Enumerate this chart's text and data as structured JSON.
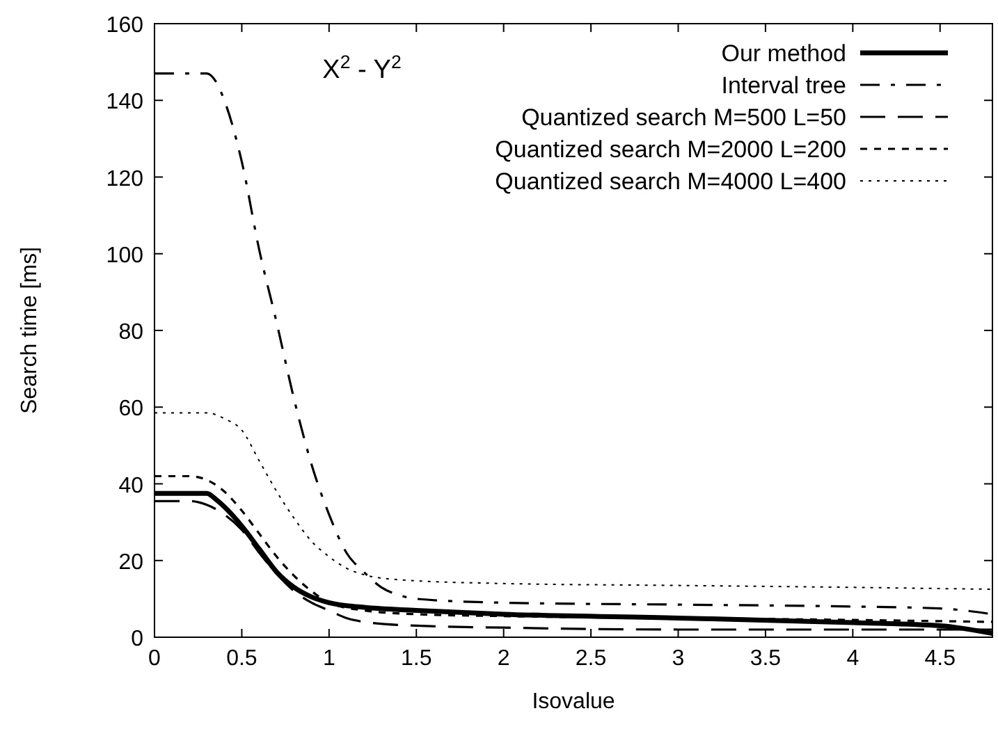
{
  "chart_data": {
    "type": "line",
    "title": "X$^{2}$ - Y$^{2}$",
    "xlabel": "Isovalue",
    "ylabel": "Search time [ms]",
    "xlim": [
      0,
      4.8
    ],
    "xticks": [
      0,
      0.5,
      1,
      1.5,
      2,
      2.5,
      3,
      3.5,
      4,
      4.5
    ],
    "ylim": [
      0,
      160
    ],
    "yticks": [
      0,
      20,
      40,
      60,
      80,
      100,
      120,
      140,
      160
    ],
    "grid": false,
    "legend": "top right",
    "series": [
      {
        "name": "Our method",
        "color": "#000000",
        "line_style": "solid",
        "x": [
          0,
          0.2,
          0.3,
          0.35,
          0.4,
          0.5,
          0.6,
          0.7,
          0.8,
          0.9,
          1.0,
          1.2,
          1.5,
          2,
          3,
          4,
          4.5,
          4.8
        ],
        "values": [
          37.5,
          37.5,
          37.5,
          36,
          34,
          29,
          23,
          17,
          13,
          10.5,
          9,
          7.8,
          7,
          6,
          5,
          3.8,
          3,
          1
        ]
      },
      {
        "name": "Interval tree",
        "color": "#000000",
        "line_style": "dashed",
        "x": [
          0,
          0.2,
          0.3,
          0.35,
          0.4,
          0.5,
          0.6,
          0.7,
          0.8,
          0.9,
          1.0,
          1.1,
          1.2,
          1.3,
          1.4,
          1.5,
          2,
          3,
          4,
          4.5,
          4.8
        ],
        "values": [
          147,
          147,
          147,
          145,
          140,
          124,
          101,
          82,
          62,
          45,
          32,
          22,
          17,
          13,
          11,
          10,
          9,
          8.5,
          8,
          7.5,
          6
        ]
      },
      {
        "name": "Quantized search M=500 L=50",
        "color": "#000000",
        "line_style": "dashed",
        "x": [
          0,
          0.2,
          0.3,
          0.4,
          0.5,
          0.6,
          0.7,
          0.8,
          0.9,
          1.0,
          1.1,
          1.2,
          1.5,
          2,
          3,
          4,
          4.8
        ],
        "values": [
          35.5,
          35.5,
          34.5,
          32,
          28,
          22,
          16.5,
          12,
          9,
          7,
          5,
          4,
          3,
          2.5,
          2,
          2,
          2
        ]
      },
      {
        "name": "Quantized search M=2000 L=200",
        "color": "#000000",
        "line_style": "dashed",
        "x": [
          0,
          0.2,
          0.3,
          0.4,
          0.5,
          0.6,
          0.7,
          0.8,
          0.9,
          1.0,
          1.2,
          1.5,
          2,
          3,
          4,
          4.8
        ],
        "values": [
          42,
          42,
          41,
          38,
          33,
          27,
          21,
          16,
          12,
          9,
          7,
          6,
          5.5,
          5,
          4.5,
          4
        ]
      },
      {
        "name": "Quantized search M=4000 L=400",
        "color": "#000000",
        "line_style": "dotted",
        "x": [
          0,
          0.3,
          0.4,
          0.5,
          0.6,
          0.7,
          0.8,
          0.9,
          1.0,
          1.1,
          1.2,
          1.4,
          2,
          3,
          4,
          4.8
        ],
        "values": [
          58.5,
          58.5,
          57,
          54,
          46,
          38,
          31,
          25,
          21,
          18,
          16.3,
          15,
          14,
          13.5,
          13,
          12.5
        ]
      }
    ]
  }
}
